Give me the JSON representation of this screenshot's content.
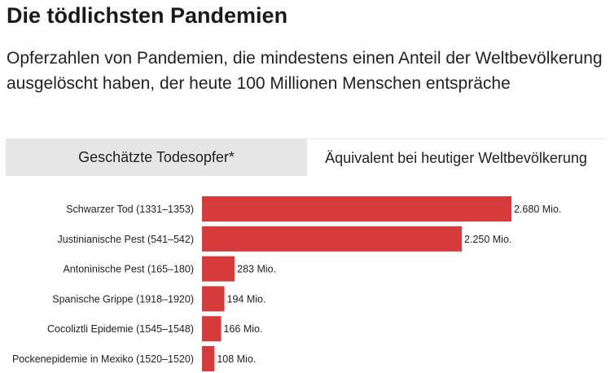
{
  "header": {
    "title": "Die tödlichsten Pandemien",
    "subtitle": "Opferzahlen von Pandemien, die mindestens einen Anteil der Weltbevölkerung ausgelöscht haben, der heute 100 Millionen Menschen entspräche"
  },
  "tabs": [
    {
      "label": "Geschätzte Todesopfer*",
      "active": false
    },
    {
      "label": "Äquivalent bei heutiger Weltbevölkerung",
      "active": true
    }
  ],
  "chart_data": {
    "type": "bar",
    "orientation": "horizontal",
    "categories": [
      "Schwarzer Tod (1331–1353)",
      "Justinianische Pest (541–542)",
      "Antoninische Pest (165–180)",
      "Spanische Grippe (1918–1920)",
      "Cocoliztli Epidemie (1545–1548)",
      "Pockenepidemie in Mexiko (1520–1520)"
    ],
    "values": [
      2680,
      2250,
      283,
      194,
      166,
      108
    ],
    "value_labels": [
      "2.680 Mio.",
      "2.250 Mio.",
      "283 Mio.",
      "194 Mio.",
      "166 Mio.",
      "108 Mio."
    ],
    "unit": "Mio.",
    "bar_color": "#d63b3b",
    "grid": false
  }
}
